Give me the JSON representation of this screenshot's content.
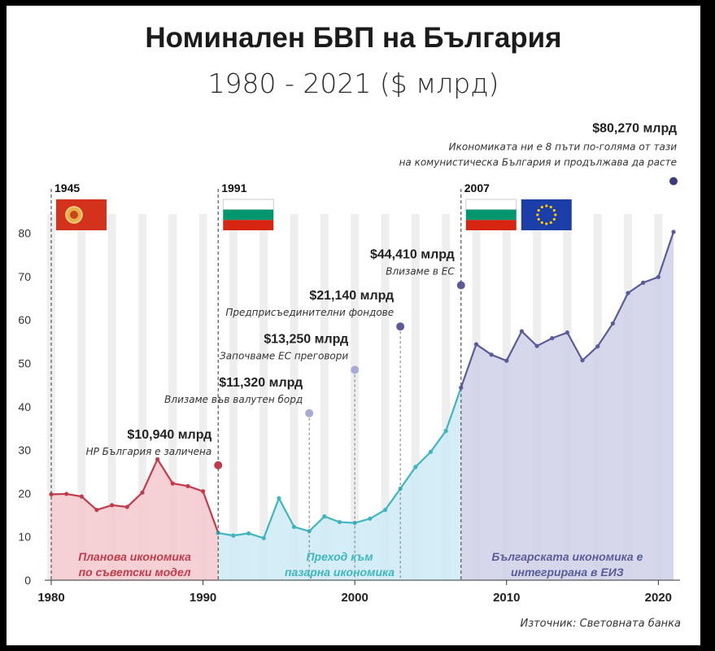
{
  "title": "Номинален БВП на България",
  "subtitle": "1980 - 2021 ($ млрд)",
  "source": "Източник: Световната банка",
  "colors": {
    "planned": "#c23b4a",
    "planned_fill": "#f3c9cf",
    "transition": "#3fb5bf",
    "transition_fill": "#cdeaf5",
    "eu": "#5b5b9b",
    "eu_fill": "#cfd0e6",
    "text": "#222222",
    "bulgaria_white": "#ffffff",
    "bulgaria_green": "#00966e",
    "bulgaria_red": "#d62612",
    "eu_blue": "#1b3ea8",
    "eu_star": "#ffcc00",
    "ussr_red": "#d4321c"
  },
  "markers": [
    {
      "year_label": "1945",
      "flags": [
        "communist-bulgaria-flag-icon"
      ]
    },
    {
      "year_label": "1991",
      "flags": [
        "bulgaria-flag-icon"
      ]
    },
    {
      "year_label": "2007",
      "flags": [
        "bulgaria-flag-icon",
        "eu-flag-icon"
      ]
    }
  ],
  "eras": [
    {
      "label_line1": "Планова икономика",
      "label_line2": "по съветски модел"
    },
    {
      "label_line1": "Преход към",
      "label_line2": "пазарна икономика"
    },
    {
      "label_line1": "Българската икономика е",
      "label_line2": "интегрирана в ЕИЗ"
    }
  ],
  "annotations": [
    {
      "year": 1991,
      "value": 26.5,
      "amount": "$10,940 млрд",
      "text": "НР България е заличена",
      "color": "#c23b4a"
    },
    {
      "year": 1997,
      "value": 38.5,
      "amount": "$11,320 млрд",
      "text": "Влизаме във валутен борд",
      "color": "#a9a9d6"
    },
    {
      "year": 2000,
      "value": 48.5,
      "amount": "$13,250 млрд",
      "text": "Започваме ЕС преговори",
      "color": "#a9a9d6"
    },
    {
      "year": 2003,
      "value": 58.5,
      "amount": "$21,140 млрд",
      "text": "Предприсъединителни фондове",
      "color": "#5b5b9b"
    },
    {
      "year": 2007,
      "value": 68,
      "amount": "$44,410 млрд",
      "text": "Влизаме в ЕС",
      "color": "#5b5b9b"
    },
    {
      "year": 2021,
      "value": 92,
      "amount": "$80,270 млрд",
      "text_line1": "Икономиката ни е 8 пъти по-голяма от тази",
      "text_line2": "на комунистическа България и продължава да расте",
      "color": "#3b3b7b"
    }
  ],
  "chart_data": {
    "type": "area",
    "title": "Номинален БВП на България",
    "subtitle": "1980 - 2021 ($ млрд)",
    "x_ticks": [
      1980,
      1990,
      2000,
      2010,
      2020
    ],
    "y_ticks": [
      0,
      10,
      20,
      30,
      40,
      50,
      60,
      70,
      80
    ],
    "xlim": [
      1980,
      2021
    ],
    "ylim": [
      0,
      85
    ],
    "x": [
      1980,
      1981,
      1982,
      1983,
      1984,
      1985,
      1986,
      1987,
      1988,
      1989,
      1990,
      1991,
      1992,
      1993,
      1994,
      1995,
      1996,
      1997,
      1998,
      1999,
      2000,
      2001,
      2002,
      2003,
      2004,
      2005,
      2006,
      2007,
      2008,
      2009,
      2010,
      2011,
      2012,
      2013,
      2014,
      2015,
      2016,
      2017,
      2018,
      2019,
      2020,
      2021
    ],
    "values": [
      19.8,
      19.9,
      19.3,
      16.2,
      17.3,
      16.9,
      20.2,
      27.9,
      22.3,
      21.7,
      20.5,
      10.9,
      10.3,
      10.8,
      9.7,
      18.9,
      12.3,
      11.3,
      14.7,
      13.4,
      13.2,
      14.2,
      16.2,
      21.1,
      26.1,
      29.6,
      34.4,
      44.4,
      54.4,
      52.0,
      50.6,
      57.4,
      54.0,
      55.8,
      57.1,
      50.7,
      53.9,
      59.2,
      66.2,
      68.6,
      69.9,
      80.3
    ],
    "segments": [
      {
        "name": "Планова икономика по съветски модел",
        "from": 1980,
        "to": 1991
      },
      {
        "name": "Преход към пазарна икономика",
        "from": 1991,
        "to": 2007
      },
      {
        "name": "Българската икономика е интегрирана в ЕИЗ",
        "from": 2007,
        "to": 2021
      }
    ],
    "grid": "vertical stripes"
  }
}
